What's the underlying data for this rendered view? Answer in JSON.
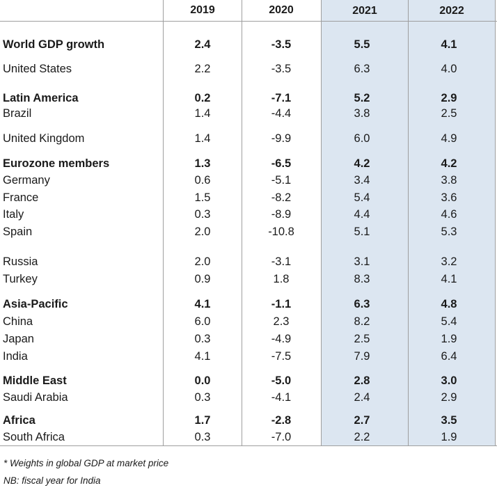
{
  "chart_data": {
    "type": "table",
    "columns": [
      "2019",
      "2020",
      "2021",
      "2022"
    ],
    "rows": [
      {
        "label": "World GDP growth",
        "bold": true,
        "values": [
          "2.4",
          "-3.5",
          "5.5",
          "4.1"
        ]
      },
      {
        "label": "United States",
        "bold": false,
        "values": [
          "2.2",
          "-3.5",
          "6.3",
          "4.0"
        ]
      },
      {
        "label": "Latin America",
        "bold": true,
        "values": [
          "0.2",
          "-7.1",
          "5.2",
          "2.9"
        ]
      },
      {
        "label": "Brazil",
        "bold": false,
        "values": [
          "1.4",
          "-4.4",
          "3.8",
          "2.5"
        ]
      },
      {
        "label": "United Kingdom",
        "bold": false,
        "values": [
          "1.4",
          "-9.9",
          "6.0",
          "4.9"
        ]
      },
      {
        "label": "Eurozone members",
        "bold": true,
        "values": [
          "1.3",
          "-6.5",
          "4.2",
          "4.2"
        ]
      },
      {
        "label": "Germany",
        "bold": false,
        "values": [
          "0.6",
          "-5.1",
          "3.4",
          "3.8"
        ]
      },
      {
        "label": "France",
        "bold": false,
        "values": [
          "1.5",
          "-8.2",
          "5.4",
          "3.6"
        ]
      },
      {
        "label": "Italy",
        "bold": false,
        "values": [
          "0.3",
          "-8.9",
          "4.4",
          "4.6"
        ]
      },
      {
        "label": "Spain",
        "bold": false,
        "values": [
          "2.0",
          "-10.8",
          "5.1",
          "5.3"
        ]
      },
      {
        "label": "Russia",
        "bold": false,
        "values": [
          "2.0",
          "-3.1",
          "3.1",
          "3.2"
        ]
      },
      {
        "label": "Turkey",
        "bold": false,
        "values": [
          "0.9",
          "1.8",
          "8.3",
          "4.1"
        ]
      },
      {
        "label": "Asia-Pacific",
        "bold": true,
        "values": [
          "4.1",
          "-1.1",
          "6.3",
          "4.8"
        ]
      },
      {
        "label": "China",
        "bold": false,
        "values": [
          "6.0",
          "2.3",
          "8.2",
          "5.4"
        ]
      },
      {
        "label": "Japan",
        "bold": false,
        "values": [
          "0.3",
          "-4.9",
          "2.5",
          "1.9"
        ]
      },
      {
        "label": "India",
        "bold": false,
        "values": [
          "4.1",
          "-7.5",
          "7.9",
          "6.4"
        ]
      },
      {
        "label": "Middle East",
        "bold": true,
        "values": [
          "0.0",
          "-5.0",
          "2.8",
          "3.0"
        ]
      },
      {
        "label": "Saudi Arabia",
        "bold": false,
        "values": [
          "0.3",
          "-4.1",
          "2.4",
          "2.9"
        ]
      },
      {
        "label": "Africa",
        "bold": true,
        "values": [
          "1.7",
          "-2.8",
          "2.7",
          "3.5"
        ]
      },
      {
        "label": "South Africa",
        "bold": false,
        "values": [
          "0.3",
          "-7.0",
          "2.2",
          "1.9"
        ]
      }
    ],
    "shaded_columns": [
      "2021",
      "2022"
    ],
    "shade_color": "#dce6f1",
    "notes": [
      "* Weights in global GDP at market price",
      "NB: fiscal year for India"
    ]
  }
}
